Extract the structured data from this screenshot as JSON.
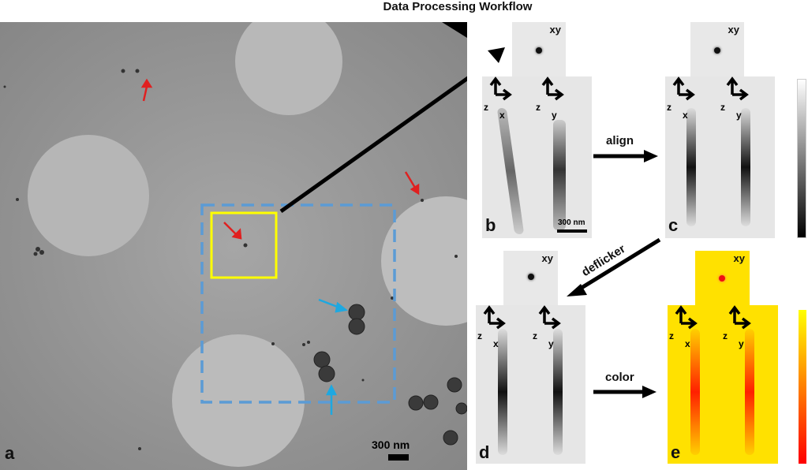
{
  "title": "Data Processing Workflow",
  "panels": {
    "a": {
      "label": "a",
      "scale_bar": "300 nm"
    },
    "b": {
      "label": "b",
      "scale_bar": "300 nm",
      "xy_label": "xy",
      "axes_left": {
        "z": "z",
        "h": "x"
      },
      "axes_right": {
        "z": "z",
        "h": "y"
      }
    },
    "c": {
      "label": "c",
      "xy_label": "xy",
      "axes_left": {
        "z": "z",
        "h": "x"
      },
      "axes_right": {
        "z": "z",
        "h": "y"
      }
    },
    "d": {
      "label": "d",
      "xy_label": "xy",
      "axes_left": {
        "z": "z",
        "h": "x"
      },
      "axes_right": {
        "z": "z",
        "h": "y"
      }
    },
    "e": {
      "label": "e",
      "xy_label": "xy",
      "axes_left": {
        "z": "z",
        "h": "x"
      },
      "axes_right": {
        "z": "z",
        "h": "y"
      }
    }
  },
  "steps": {
    "align": "align",
    "deflicker": "deflicker",
    "color": "color"
  },
  "colors": {
    "highlight_box": "#ffff00",
    "region_box": "#5b9bd5",
    "red_arrows": "#e02020",
    "blue_arrows": "#1ea8e0",
    "colormap_top": "#ffff00",
    "colormap_bottom": "#ff0000"
  }
}
